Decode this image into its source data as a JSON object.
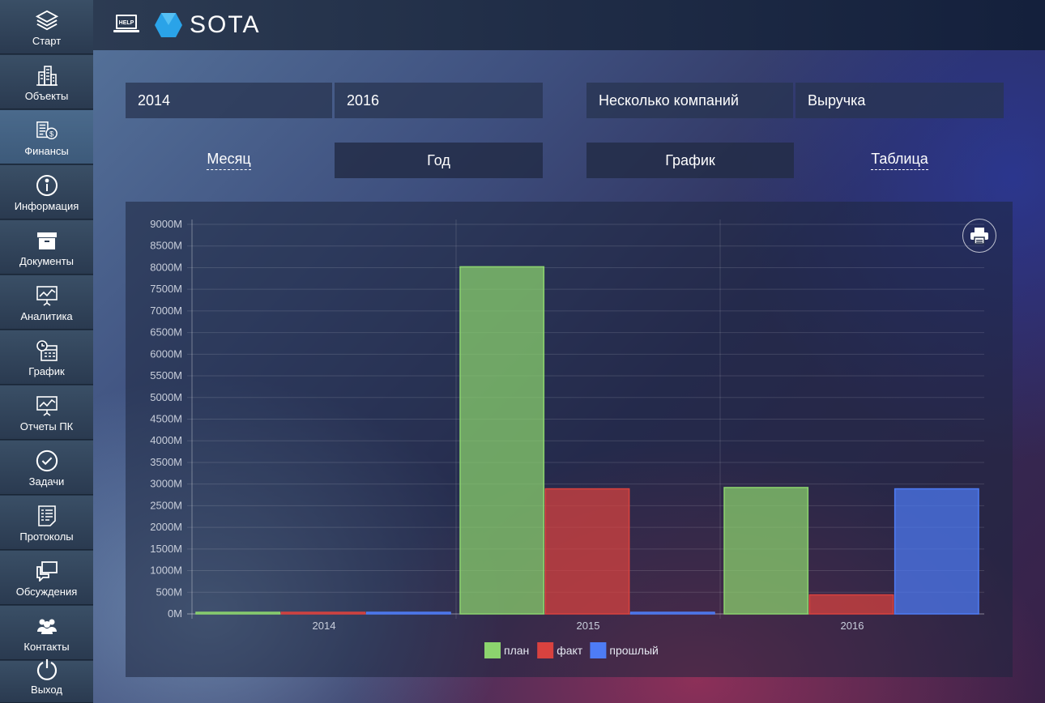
{
  "header": {
    "help_label": "HELP",
    "brand": "SOTA"
  },
  "sidebar": {
    "items": [
      {
        "label": "Старт",
        "icon": "layers-icon"
      },
      {
        "label": "Объекты",
        "icon": "buildings-icon"
      },
      {
        "label": "Финансы",
        "icon": "finance-icon",
        "active": true
      },
      {
        "label": "Информация",
        "icon": "info-icon"
      },
      {
        "label": "Документы",
        "icon": "archive-box-icon"
      },
      {
        "label": "Аналитика",
        "icon": "presentation-chart-icon"
      },
      {
        "label": "График",
        "icon": "calendar-clock-icon"
      },
      {
        "label": "Отчеты ПК",
        "icon": "report-chart-icon"
      },
      {
        "label": "Задачи",
        "icon": "check-circle-icon"
      },
      {
        "label": "Протоколы",
        "icon": "document-list-icon"
      },
      {
        "label": "Обсуждения",
        "icon": "chat-icon"
      },
      {
        "label": "Контакты",
        "icon": "contacts-icon"
      },
      {
        "label": "Выход",
        "icon": "power-icon"
      }
    ]
  },
  "filters": {
    "year_from": "2014",
    "year_to": "2016",
    "companies": "Несколько компаний",
    "metric": "Выручка"
  },
  "view_tabs": {
    "month": "Месяц",
    "year": "Год",
    "chart": "График",
    "table": "Таблица",
    "active_period": "year",
    "active_view": "chart"
  },
  "chart_data": {
    "type": "bar",
    "categories": [
      "2014",
      "2015",
      "2016"
    ],
    "series": [
      {
        "name": "план",
        "color": "#8cd46e",
        "values": [
          0,
          8020,
          2920
        ]
      },
      {
        "name": "факт",
        "color": "#d9423f",
        "values": [
          0,
          2890,
          440
        ]
      },
      {
        "name": "прошлый",
        "color": "#4e7cf5",
        "values": [
          0,
          0,
          2890
        ]
      }
    ],
    "ylim": [
      0,
      9000
    ],
    "ytick_step": 500,
    "ytick_suffix": "M",
    "grid": true,
    "legend_position": "bottom-center"
  }
}
